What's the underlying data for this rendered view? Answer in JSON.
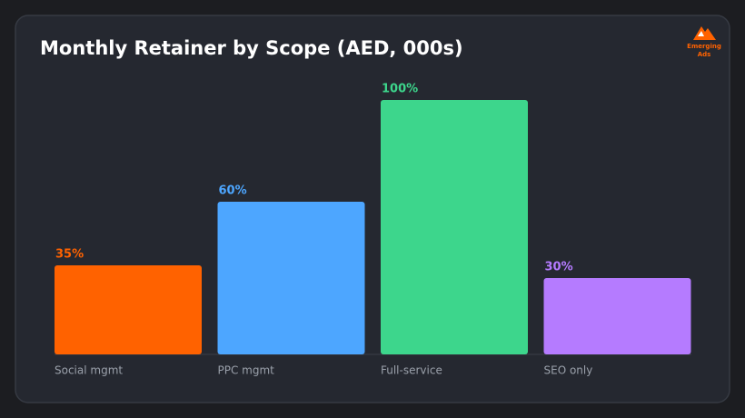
{
  "brand": [
    "Emerging",
    "Ads"
  ],
  "chart_data": {
    "type": "bar",
    "title": "Monthly Retainer by Scope (AED, 000s)",
    "categories": [
      "Social mgmt",
      "PPC mgmt",
      "Full-service",
      "SEO only"
    ],
    "values": [
      35,
      60,
      100,
      30
    ],
    "value_labels": [
      "35%",
      "60%",
      "100%",
      "30%"
    ],
    "colors": [
      "#ff6200",
      "#4da6ff",
      "#3dd68c",
      "#b57bff"
    ],
    "ylim": [
      0,
      100
    ]
  }
}
